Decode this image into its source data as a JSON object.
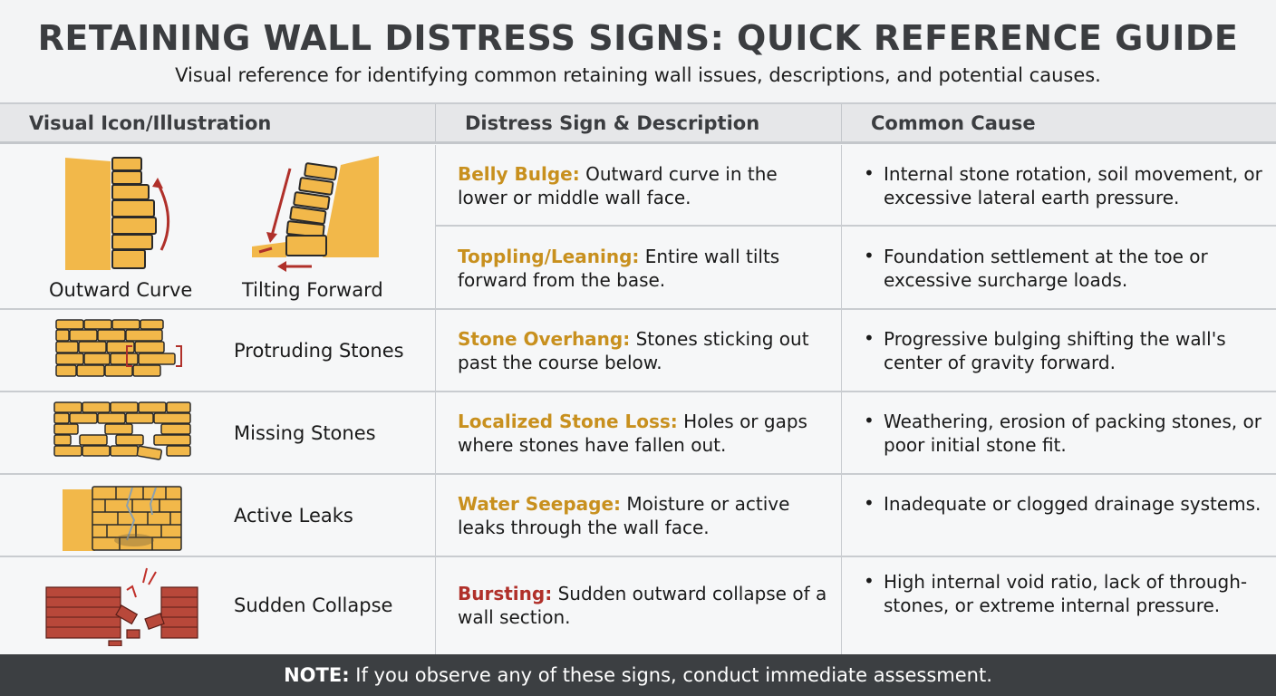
{
  "header": {
    "title": "RETAINING WALL DISTRESS SIGNS: QUICK REFERENCE GUIDE",
    "subtitle": "Visual reference for identifying common retaining wall issues, descriptions, and potential causes."
  },
  "columns": [
    "Visual Icon/Illustration",
    "Distress Sign & Description",
    "Common Cause"
  ],
  "colors": {
    "accent": "#c8901e",
    "danger": "#b0302a",
    "stone": "#f2b84a",
    "footer": "#3c3f42"
  },
  "rows": [
    {
      "icon": "outward-curve-wall-icon",
      "label": "Outward Curve",
      "name": "Belly Bulge:",
      "desc": " Outward curve in the lower or middle wall face.",
      "cause": "Internal stone rotation, soil movement, or excessive lateral earth pressure."
    },
    {
      "icon": "tilting-wall-icon",
      "label": "Tilting Forward",
      "name": "Toppling/Leaning:",
      "desc": " Entire wall tilts forward from the base.",
      "cause": "Foundation settlement at the toe or excessive surcharge loads."
    },
    {
      "icon": "protruding-stones-icon",
      "label": "Protruding Stones",
      "name": "Stone Overhang:",
      "desc": " Stones sticking out past the course below.",
      "cause": "Progressive bulging shifting the wall's center of gravity forward."
    },
    {
      "icon": "missing-stones-icon",
      "label": "Missing Stones",
      "name": "Localized Stone Loss:",
      "desc": " Holes or gaps where stones have fallen out.",
      "cause": "Weathering, erosion of packing stones, or poor initial stone fit."
    },
    {
      "icon": "leaking-wall-icon",
      "label": "Active Leaks",
      "name": "Water Seepage:",
      "desc": " Moisture or active leaks through the wall face.",
      "cause": "Inadequate or clogged drainage systems."
    },
    {
      "icon": "collapsing-wall-icon",
      "label": "Sudden Collapse",
      "name": "Bursting:",
      "desc": " Sudden outward collapse of a wall section.",
      "cause": "High internal void ratio, lack of through-stones, or extreme internal pressure."
    }
  ],
  "footer": {
    "bold": "NOTE:",
    "text": " If you observe any of these signs, conduct immediate assessment."
  }
}
